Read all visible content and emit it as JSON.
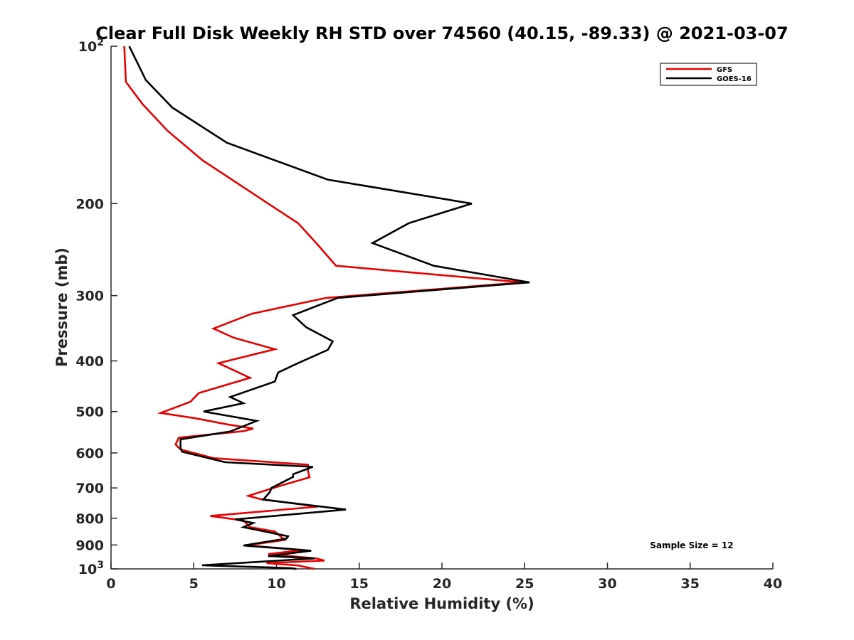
{
  "chart_data": {
    "type": "line",
    "title": "Clear Full Disk Weekly RH STD over 74560 (40.15, -89.33) @ 2021-03-07",
    "xlabel": "Relative Humidity (%)",
    "ylabel": "Pressure (mb)",
    "xlim": [
      0,
      40
    ],
    "ylim": [
      100,
      1000
    ],
    "yscale": "log",
    "y_reversed": true,
    "grid": false,
    "legend_position": "top-right",
    "x_ticks": [
      "0",
      "5",
      "10",
      "15",
      "20",
      "25",
      "30",
      "35",
      "40"
    ],
    "y_ticks": [
      {
        "value": 100,
        "base": "10",
        "exp": "2"
      },
      {
        "value": 200,
        "label": "200"
      },
      {
        "value": 300,
        "label": "300"
      },
      {
        "value": 400,
        "label": "400"
      },
      {
        "value": 500,
        "label": "500"
      },
      {
        "value": 600,
        "label": "600"
      },
      {
        "value": 700,
        "label": "700"
      },
      {
        "value": 800,
        "label": "800"
      },
      {
        "value": 900,
        "label": "900"
      },
      {
        "value": 1000,
        "base": "10",
        "exp": "3"
      }
    ],
    "annotation": "Sample Size = 12",
    "series": [
      {
        "name": "GFS",
        "color": "#e60000",
        "points": [
          [
            0.8,
            100
          ],
          [
            0.9,
            117
          ],
          [
            1.9,
            129
          ],
          [
            3.4,
            145
          ],
          [
            5.5,
            165
          ],
          [
            9.5,
            200
          ],
          [
            11.3,
            218
          ],
          [
            12.4,
            238
          ],
          [
            13.6,
            263
          ],
          [
            24.9,
            283
          ],
          [
            13.0,
            303
          ],
          [
            8.5,
            325
          ],
          [
            6.2,
            347
          ],
          [
            7.4,
            361
          ],
          [
            9.9,
            380
          ],
          [
            6.5,
            404
          ],
          [
            8.4,
            431
          ],
          [
            5.3,
            461
          ],
          [
            4.8,
            479
          ],
          [
            3.0,
            503
          ],
          [
            5.1,
            515
          ],
          [
            7.0,
            529
          ],
          [
            8.6,
            539
          ],
          [
            8.0,
            545
          ],
          [
            4.1,
            561
          ],
          [
            3.9,
            578
          ],
          [
            4.2,
            591
          ],
          [
            6.2,
            614
          ],
          [
            11.9,
            632
          ],
          [
            11.9,
            650
          ],
          [
            12.0,
            668
          ],
          [
            10.2,
            694
          ],
          [
            8.3,
            725
          ],
          [
            9.0,
            735
          ],
          [
            12.5,
            760
          ],
          [
            6.0,
            792
          ],
          [
            8.0,
            808
          ],
          [
            8.4,
            832
          ],
          [
            9.9,
            848
          ],
          [
            10.5,
            880
          ],
          [
            8.2,
            902
          ],
          [
            11.6,
            920
          ],
          [
            9.5,
            937
          ],
          [
            12.4,
            955
          ],
          [
            12.9,
            964
          ],
          [
            9.4,
            975
          ],
          [
            11.3,
            985
          ],
          [
            12.3,
            1000
          ]
        ]
      },
      {
        "name": "GOES-16",
        "color": "#000000",
        "points": [
          [
            1.1,
            100
          ],
          [
            2.1,
            116
          ],
          [
            3.7,
            131
          ],
          [
            7.0,
            153
          ],
          [
            13.1,
            180
          ],
          [
            21.8,
            200
          ],
          [
            18.0,
            218
          ],
          [
            15.8,
            238
          ],
          [
            19.5,
            263
          ],
          [
            25.3,
            283
          ],
          [
            13.7,
            303
          ],
          [
            11.0,
            327
          ],
          [
            11.8,
            345
          ],
          [
            13.4,
            367
          ],
          [
            13.1,
            381
          ],
          [
            11.3,
            404
          ],
          [
            10.1,
            421
          ],
          [
            9.9,
            438
          ],
          [
            7.2,
            469
          ],
          [
            8.0,
            482
          ],
          [
            5.6,
            500
          ],
          [
            8.8,
            521
          ],
          [
            7.2,
            546
          ],
          [
            4.2,
            565
          ],
          [
            4.2,
            587
          ],
          [
            4.3,
            597
          ],
          [
            6.9,
            625
          ],
          [
            12.2,
            638
          ],
          [
            11.0,
            659
          ],
          [
            11.0,
            667
          ],
          [
            9.7,
            700
          ],
          [
            9.6,
            713
          ],
          [
            9.2,
            737
          ],
          [
            14.2,
            770
          ],
          [
            7.5,
            804
          ],
          [
            8.6,
            817
          ],
          [
            8.0,
            832
          ],
          [
            10.7,
            866
          ],
          [
            10.6,
            875
          ],
          [
            8.0,
            902
          ],
          [
            12.1,
            923
          ],
          [
            9.5,
            945
          ],
          [
            12.3,
            955
          ],
          [
            5.5,
            984
          ],
          [
            10.9,
            997
          ],
          [
            11.2,
            1000
          ]
        ]
      }
    ]
  }
}
